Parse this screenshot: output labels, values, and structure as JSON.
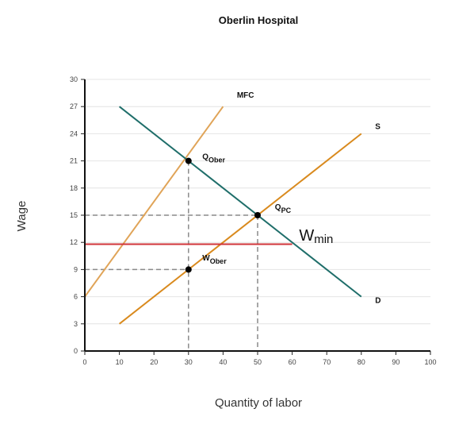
{
  "chart_data": {
    "type": "line",
    "title": "Oberlin Hospital",
    "xlabel": "Quantity of labor",
    "ylabel": "Wage",
    "xlim": [
      0,
      100
    ],
    "ylim": [
      0,
      30
    ],
    "xticks": [
      0,
      10,
      20,
      30,
      40,
      50,
      60,
      70,
      80,
      90,
      100
    ],
    "yticks": [
      0,
      3,
      6,
      9,
      12,
      15,
      18,
      21,
      24,
      27,
      30
    ],
    "grid": true,
    "series": [
      {
        "name": "MFC",
        "color": "#e0a458",
        "points": [
          [
            0,
            6
          ],
          [
            40,
            27
          ]
        ]
      },
      {
        "name": "S",
        "color": "#d98a1e",
        "points": [
          [
            10,
            3
          ],
          [
            80,
            24
          ]
        ]
      },
      {
        "name": "D",
        "color": "#1f6e6a",
        "points": [
          [
            10,
            27
          ],
          [
            80,
            6
          ]
        ]
      },
      {
        "name": "Wmin",
        "color": "#d0343a",
        "points": [
          [
            0,
            11.8
          ],
          [
            60,
            11.8
          ]
        ]
      }
    ],
    "points": [
      {
        "label": "Q_Ober",
        "main": "Q",
        "sub": "Ober",
        "x": 30,
        "y": 21
      },
      {
        "label": "Q_PC",
        "main": "Q",
        "sub": "PC",
        "x": 50,
        "y": 15
      },
      {
        "label": "W_Ober",
        "main": "W",
        "sub": "Ober",
        "x": 30,
        "y": 9
      }
    ],
    "dashed_guides": [
      {
        "from": [
          0,
          15
        ],
        "to": [
          50,
          15
        ]
      },
      {
        "from": [
          50,
          15
        ],
        "to": [
          50,
          0
        ]
      },
      {
        "from": [
          0,
          9
        ],
        "to": [
          30,
          9
        ]
      },
      {
        "from": [
          30,
          21
        ],
        "to": [
          30,
          0
        ]
      }
    ],
    "labels": {
      "mfc": "MFC",
      "s": "S",
      "d": "D",
      "wmin_main": "W",
      "wmin_sub": "min"
    }
  }
}
